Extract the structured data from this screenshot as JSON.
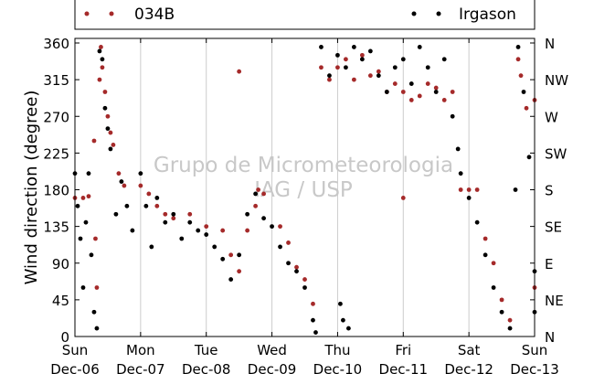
{
  "chart_data": {
    "type": "scatter",
    "title": "",
    "xlabel": "",
    "ylabel": "Wind direction (degree)",
    "ylim": [
      0,
      360
    ],
    "xlim": [
      "2013-12-06T00:00",
      "2013-12-13T00:00"
    ],
    "yticks": [
      0,
      45,
      90,
      135,
      180,
      225,
      270,
      315,
      360
    ],
    "y_right_ticks": [
      "N",
      "NE",
      "E",
      "SE",
      "S",
      "SW",
      "W",
      "NW",
      "N"
    ],
    "x_ticks": [
      {
        "day": "Sun",
        "date": "Dec-06"
      },
      {
        "day": "Mon",
        "date": "Dec-07"
      },
      {
        "day": "Tue",
        "date": "Dec-08"
      },
      {
        "day": "Wed",
        "date": "Dec-09"
      },
      {
        "day": "Thu",
        "date": "Dec-10"
      },
      {
        "day": "Fri",
        "date": "Dec-11"
      },
      {
        "day": "Sat",
        "date": "Dec-12"
      },
      {
        "day": "Sun",
        "date": "Dec-13"
      }
    ],
    "grid": "vertical",
    "legend_position": "top",
    "watermark": [
      "Grupo de Micrometeorologia",
      "IAG / USP"
    ],
    "series": [
      {
        "name": "034B",
        "color": "#a52a2a",
        "points": [
          [
            "2013-12-06T00:00",
            170
          ],
          [
            "2013-12-06T03:00",
            170
          ],
          [
            "2013-12-06T05:00",
            172
          ],
          [
            "2013-12-06T07:00",
            240
          ],
          [
            "2013-12-06T07:30",
            120
          ],
          [
            "2013-12-06T08:00",
            60
          ],
          [
            "2013-12-06T09:00",
            315
          ],
          [
            "2013-12-06T09:30",
            355
          ],
          [
            "2013-12-06T10:00",
            330
          ],
          [
            "2013-12-06T11:00",
            300
          ],
          [
            "2013-12-06T12:00",
            270
          ],
          [
            "2013-12-06T13:00",
            250
          ],
          [
            "2013-12-06T14:00",
            235
          ],
          [
            "2013-12-06T16:00",
            200
          ],
          [
            "2013-12-06T18:00",
            185
          ],
          [
            "2013-12-07T00:00",
            185
          ],
          [
            "2013-12-07T03:00",
            175
          ],
          [
            "2013-12-07T06:00",
            160
          ],
          [
            "2013-12-07T09:00",
            150
          ],
          [
            "2013-12-07T12:00",
            145
          ],
          [
            "2013-12-07T18:00",
            150
          ],
          [
            "2013-12-08T00:00",
            135
          ],
          [
            "2013-12-08T06:00",
            130
          ],
          [
            "2013-12-08T09:00",
            100
          ],
          [
            "2013-12-08T12:00",
            80
          ],
          [
            "2013-12-08T15:00",
            130
          ],
          [
            "2013-12-08T18:00",
            160
          ],
          [
            "2013-12-08T19:00",
            180
          ],
          [
            "2013-12-08T21:00",
            175
          ],
          [
            "2013-12-08T12:00",
            325
          ],
          [
            "2013-12-09T03:00",
            135
          ],
          [
            "2013-12-09T06:00",
            115
          ],
          [
            "2013-12-09T09:00",
            85
          ],
          [
            "2013-12-09T12:00",
            70
          ],
          [
            "2013-12-09T15:00",
            40
          ],
          [
            "2013-12-09T18:00",
            330
          ],
          [
            "2013-12-09T21:00",
            315
          ],
          [
            "2013-12-10T00:00",
            330
          ],
          [
            "2013-12-10T03:00",
            340
          ],
          [
            "2013-12-10T06:00",
            315
          ],
          [
            "2013-12-10T09:00",
            345
          ],
          [
            "2013-12-10T12:00",
            320
          ],
          [
            "2013-12-10T15:00",
            325
          ],
          [
            "2013-12-10T18:00",
            300
          ],
          [
            "2013-12-10T21:00",
            310
          ],
          [
            "2013-12-11T00:00",
            300
          ],
          [
            "2013-12-11T03:00",
            290
          ],
          [
            "2013-12-11T06:00",
            295
          ],
          [
            "2013-12-11T09:00",
            310
          ],
          [
            "2013-12-11T12:00",
            305
          ],
          [
            "2013-12-11T15:00",
            290
          ],
          [
            "2013-12-11T18:00",
            300
          ],
          [
            "2013-12-11T00:00",
            170
          ],
          [
            "2013-12-11T21:00",
            180
          ],
          [
            "2013-12-12T00:00",
            180
          ],
          [
            "2013-12-12T03:00",
            180
          ],
          [
            "2013-12-12T06:00",
            120
          ],
          [
            "2013-12-12T09:00",
            90
          ],
          [
            "2013-12-12T12:00",
            45
          ],
          [
            "2013-12-12T15:00",
            20
          ],
          [
            "2013-12-12T18:00",
            340
          ],
          [
            "2013-12-12T19:00",
            320
          ],
          [
            "2013-12-12T21:00",
            280
          ],
          [
            "2013-12-13T00:00",
            290
          ],
          [
            "2013-12-13T00:00",
            60
          ]
        ]
      },
      {
        "name": "Irgason",
        "color": "#000000",
        "points": [
          [
            "2013-12-06T00:00",
            200
          ],
          [
            "2013-12-06T01:00",
            160
          ],
          [
            "2013-12-06T02:00",
            120
          ],
          [
            "2013-12-06T03:00",
            60
          ],
          [
            "2013-12-06T04:00",
            140
          ],
          [
            "2013-12-06T05:00",
            200
          ],
          [
            "2013-12-06T06:00",
            100
          ],
          [
            "2013-12-06T07:00",
            30
          ],
          [
            "2013-12-06T08:00",
            10
          ],
          [
            "2013-12-06T09:00",
            350
          ],
          [
            "2013-12-06T10:00",
            340
          ],
          [
            "2013-12-06T11:00",
            280
          ],
          [
            "2013-12-06T12:00",
            255
          ],
          [
            "2013-12-06T13:00",
            230
          ],
          [
            "2013-12-06T15:00",
            150
          ],
          [
            "2013-12-06T17:00",
            190
          ],
          [
            "2013-12-06T19:00",
            160
          ],
          [
            "2013-12-06T21:00",
            130
          ],
          [
            "2013-12-07T00:00",
            200
          ],
          [
            "2013-12-07T02:00",
            160
          ],
          [
            "2013-12-07T04:00",
            110
          ],
          [
            "2013-12-07T06:00",
            170
          ],
          [
            "2013-12-07T09:00",
            140
          ],
          [
            "2013-12-07T12:00",
            150
          ],
          [
            "2013-12-07T15:00",
            120
          ],
          [
            "2013-12-07T18:00",
            140
          ],
          [
            "2013-12-07T21:00",
            130
          ],
          [
            "2013-12-08T00:00",
            125
          ],
          [
            "2013-12-08T03:00",
            110
          ],
          [
            "2013-12-08T06:00",
            95
          ],
          [
            "2013-12-08T09:00",
            70
          ],
          [
            "2013-12-08T12:00",
            100
          ],
          [
            "2013-12-08T15:00",
            150
          ],
          [
            "2013-12-08T18:00",
            175
          ],
          [
            "2013-12-08T21:00",
            145
          ],
          [
            "2013-12-09T00:00",
            135
          ],
          [
            "2013-12-09T03:00",
            110
          ],
          [
            "2013-12-09T06:00",
            90
          ],
          [
            "2013-12-09T09:00",
            80
          ],
          [
            "2013-12-09T12:00",
            60
          ],
          [
            "2013-12-09T15:00",
            20
          ],
          [
            "2013-12-09T16:00",
            5
          ],
          [
            "2013-12-09T18:00",
            355
          ],
          [
            "2013-12-09T21:00",
            320
          ],
          [
            "2013-12-10T00:00",
            345
          ],
          [
            "2013-12-10T01:00",
            40
          ],
          [
            "2013-12-10T02:00",
            20
          ],
          [
            "2013-12-10T04:00",
            10
          ],
          [
            "2013-12-10T03:00",
            330
          ],
          [
            "2013-12-10T06:00",
            355
          ],
          [
            "2013-12-10T09:00",
            340
          ],
          [
            "2013-12-10T12:00",
            350
          ],
          [
            "2013-12-10T15:00",
            320
          ],
          [
            "2013-12-10T18:00",
            300
          ],
          [
            "2013-12-10T21:00",
            330
          ],
          [
            "2013-12-11T00:00",
            340
          ],
          [
            "2013-12-11T03:00",
            310
          ],
          [
            "2013-12-11T06:00",
            355
          ],
          [
            "2013-12-11T09:00",
            330
          ],
          [
            "2013-12-11T12:00",
            300
          ],
          [
            "2013-12-11T15:00",
            340
          ],
          [
            "2013-12-11T18:00",
            270
          ],
          [
            "2013-12-11T20:00",
            230
          ],
          [
            "2013-12-11T21:00",
            200
          ],
          [
            "2013-12-12T00:00",
            170
          ],
          [
            "2013-12-12T03:00",
            140
          ],
          [
            "2013-12-12T06:00",
            100
          ],
          [
            "2013-12-12T09:00",
            60
          ],
          [
            "2013-12-12T12:00",
            30
          ],
          [
            "2013-12-12T15:00",
            10
          ],
          [
            "2013-12-12T17:00",
            180
          ],
          [
            "2013-12-12T18:00",
            355
          ],
          [
            "2013-12-12T20:00",
            300
          ],
          [
            "2013-12-12T22:00",
            220
          ],
          [
            "2013-12-13T00:00",
            80
          ],
          [
            "2013-12-13T00:00",
            30
          ]
        ]
      }
    ]
  }
}
